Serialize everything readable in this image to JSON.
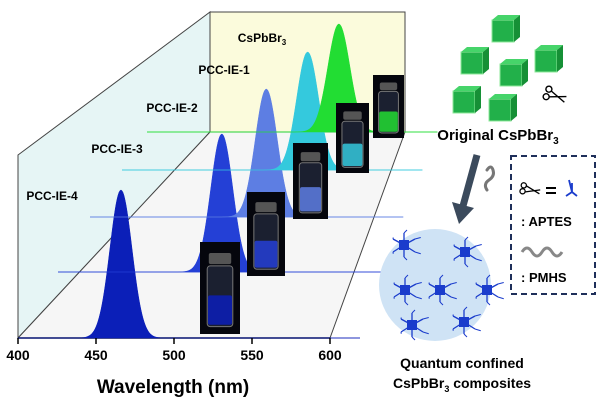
{
  "chart_data": {
    "type": "line",
    "title": "",
    "xlabel": "Wavelength (nm)",
    "ylabel": "",
    "xlim": [
      400,
      600
    ],
    "x_ticks": [
      400,
      450,
      500,
      550,
      600
    ],
    "series": [
      {
        "name": "PCC-IE-4",
        "peak_nm": 466,
        "color": "#0b1fb8"
      },
      {
        "name": "PCC-IE-3",
        "peak_nm": 505,
        "color": "#2440d6"
      },
      {
        "name": "PCC-IE-2",
        "peak_nm": 513,
        "color": "#5d7ee3"
      },
      {
        "name": "PCC-IE-1",
        "peak_nm": 519,
        "color": "#34c9dd"
      },
      {
        "name": "CsPbBr3",
        "name_parts": [
          "CsPbBr",
          "3"
        ],
        "peak_nm": 523,
        "color": "#22dd33"
      }
    ]
  },
  "scheme": {
    "original_label": [
      "Original CsPbBr",
      "3"
    ],
    "legend": {
      "aptes": ": APTES",
      "pmhs": ": PMHS"
    },
    "composite_label_line1": "Quantum confined",
    "composite_label_line2": [
      "CsPbBr",
      "3",
      " composites"
    ],
    "colors": {
      "cube": "#22b04a",
      "dot": "#1a3ccc",
      "halo": "#cfe3f5",
      "arrow": "#3b4a5c"
    }
  }
}
